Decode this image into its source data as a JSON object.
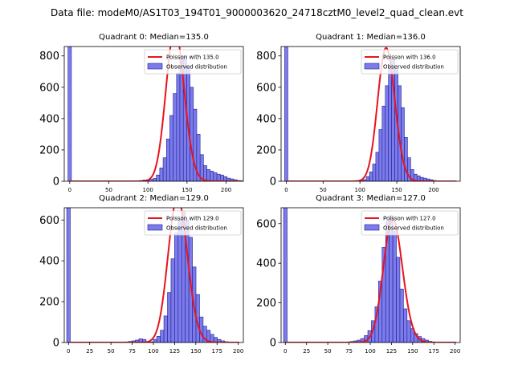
{
  "suptitle": "Data file: modeM0/AS1T03_194T01_9000003620_24718cztM0_level2_quad_clean.evt",
  "colors": {
    "bar_fill": "#7b7bec",
    "bar_edge": "#1f1f8f",
    "poisson_line": "#e8141c",
    "axis": "#000000",
    "background": "#ffffff"
  },
  "chart_data": [
    {
      "type": "bar",
      "title": "Quadrant 0: Median=135.0",
      "median": 135.0,
      "legend": {
        "position": "upper-right",
        "line_label": "Poisson with 135.0",
        "bar_label": "Observed distribution"
      },
      "xlim": [
        -7,
        222
      ],
      "ylim": [
        0,
        860
      ],
      "xticks": [
        0,
        50,
        100,
        150,
        200
      ],
      "yticks": [
        0,
        200,
        400,
        600,
        800
      ],
      "bin_start": 85,
      "bin_width": 4.3,
      "zero_bar_height": 860,
      "values": [
        3,
        5,
        8,
        10,
        12,
        18,
        40,
        85,
        150,
        270,
        420,
        560,
        690,
        780,
        800,
        730,
        600,
        460,
        300,
        170,
        100,
        75,
        65,
        55,
        45,
        40,
        30,
        20,
        15,
        10,
        5,
        3
      ]
    },
    {
      "type": "bar",
      "title": "Quadrant 1: Median=136.0",
      "median": 136.0,
      "legend": {
        "position": "upper-right",
        "line_label": "Poisson with 136.0",
        "bar_label": "Observed distribution"
      },
      "xlim": [
        -7,
        236
      ],
      "ylim": [
        0,
        860
      ],
      "xticks": [
        0,
        50,
        100,
        150,
        200
      ],
      "yticks": [
        0,
        200,
        400,
        600,
        800
      ],
      "bin_start": 100,
      "bin_width": 4.3,
      "zero_bar_height": 860,
      "values": [
        5,
        10,
        30,
        60,
        110,
        185,
        330,
        480,
        610,
        730,
        780,
        720,
        610,
        470,
        280,
        150,
        75,
        45,
        35,
        25,
        20,
        15,
        10,
        5
      ]
    },
    {
      "type": "bar",
      "title": "Quadrant 2: Median=129.0",
      "median": 129.0,
      "legend": {
        "position": "upper-right",
        "line_label": "Poisson with 129.0",
        "bar_label": "Observed distribution"
      },
      "xlim": [
        -5,
        206
      ],
      "ylim": [
        0,
        660
      ],
      "xticks": [
        0,
        25,
        50,
        75,
        100,
        125,
        150,
        175,
        200
      ],
      "yticks": [
        0,
        200,
        400,
        600
      ],
      "bin_start": 62,
      "bin_width": 4.2,
      "zero_bar_height": 660,
      "values": [
        2,
        3,
        5,
        8,
        12,
        18,
        15,
        5,
        3,
        15,
        30,
        60,
        130,
        245,
        410,
        535,
        600,
        640,
        600,
        515,
        370,
        235,
        125,
        80,
        60,
        40,
        25,
        15,
        8,
        4,
        2
      ]
    },
    {
      "type": "bar",
      "title": "Quadrant 3: Median=127.0",
      "median": 127.0,
      "legend": {
        "position": "upper-right",
        "line_label": "Poisson with 127.0",
        "bar_label": "Observed distribution"
      },
      "xlim": [
        -5,
        206
      ],
      "ylim": [
        0,
        680
      ],
      "xticks": [
        0,
        25,
        50,
        75,
        100,
        125,
        150,
        175,
        200
      ],
      "yticks": [
        0,
        200,
        400,
        600
      ],
      "bin_start": 72,
      "bin_width": 4.2,
      "zero_bar_height": 680,
      "values": [
        3,
        5,
        8,
        12,
        20,
        35,
        60,
        110,
        180,
        310,
        480,
        610,
        640,
        560,
        430,
        270,
        170,
        110,
        70,
        45,
        30,
        20,
        12,
        6,
        3
      ]
    }
  ]
}
